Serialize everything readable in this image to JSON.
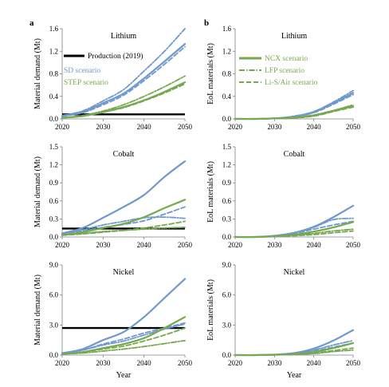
{
  "panel_letters": {
    "a": "a",
    "b": "b"
  },
  "labels": {
    "demand_ylabel": "Material demand (Mt)",
    "eol_ylabel": "EoL materials (Mt)",
    "xlabel": "Year"
  },
  "legend_a": {
    "production": "Production (2019)",
    "sd": "SD scenario",
    "step": "STEP scenario"
  },
  "legend_b": {
    "ncx": "NCX scenario",
    "lfp": "LFP scenario",
    "lis": "Li-S/Air scenario"
  },
  "colors": {
    "sd": "#6f98cd",
    "step": "#76a94f",
    "production": "#000000",
    "axis": "#7f7f7f"
  },
  "chart_data": [
    {
      "id": "a-lithium",
      "type": "line",
      "title": "Lithium",
      "xlabel": "",
      "ylabel": "Material demand (Mt)",
      "xlim": [
        2020,
        2050
      ],
      "ylim": [
        0,
        1.6
      ],
      "xticks": [
        2020,
        2030,
        2040,
        2050
      ],
      "yticks": [
        0.0,
        0.4,
        0.8,
        1.2,
        1.6
      ],
      "ytick_labels": [
        "0.0",
        "0.4",
        "0.8",
        "1.2",
        "1.6"
      ],
      "x": [
        2020,
        2025,
        2030,
        2035,
        2040,
        2045,
        2050
      ],
      "hline": {
        "name": "Production (2019)",
        "value": 0.08
      },
      "series": [
        {
          "name": "SD scenario",
          "scenario": "NCX",
          "values": [
            0.05,
            0.12,
            0.28,
            0.45,
            0.72,
            1.02,
            1.33
          ]
        },
        {
          "name": "SD scenario",
          "scenario": "LFP",
          "values": [
            0.06,
            0.14,
            0.32,
            0.52,
            0.85,
            1.2,
            1.6
          ]
        },
        {
          "name": "SD scenario",
          "scenario": "Li-S/Air",
          "values": [
            0.05,
            0.11,
            0.25,
            0.42,
            0.68,
            0.97,
            1.28
          ]
        },
        {
          "name": "STEP scenario",
          "scenario": "NCX",
          "values": [
            0.02,
            0.05,
            0.12,
            0.21,
            0.33,
            0.48,
            0.65
          ]
        },
        {
          "name": "STEP scenario",
          "scenario": "LFP",
          "values": [
            0.02,
            0.06,
            0.14,
            0.25,
            0.4,
            0.57,
            0.76
          ]
        },
        {
          "name": "STEP scenario",
          "scenario": "Li-S/Air",
          "values": [
            0.02,
            0.05,
            0.12,
            0.2,
            0.32,
            0.46,
            0.62
          ]
        }
      ]
    },
    {
      "id": "b-lithium",
      "type": "line",
      "title": "Lithium",
      "xlabel": "",
      "ylabel": "EoL materials (Mt)",
      "xlim": [
        2020,
        2050
      ],
      "ylim": [
        0,
        1.6
      ],
      "xticks": [
        2020,
        2030,
        2040,
        2050
      ],
      "yticks": [
        0.0,
        0.4,
        0.8,
        1.2,
        1.6
      ],
      "ytick_labels": [
        "0.0",
        "0.4",
        "0.8",
        "1.2",
        "1.6"
      ],
      "x": [
        2020,
        2025,
        2030,
        2035,
        2040,
        2045,
        2050
      ],
      "series": [
        {
          "name": "SD scenario",
          "scenario": "NCX",
          "values": [
            0.0,
            0.0,
            0.01,
            0.04,
            0.12,
            0.28,
            0.46
          ]
        },
        {
          "name": "SD scenario",
          "scenario": "LFP",
          "values": [
            0.0,
            0.0,
            0.01,
            0.05,
            0.13,
            0.3,
            0.5
          ]
        },
        {
          "name": "SD scenario",
          "scenario": "Li-S/Air",
          "values": [
            0.0,
            0.0,
            0.01,
            0.04,
            0.11,
            0.26,
            0.43
          ]
        },
        {
          "name": "STEP scenario",
          "scenario": "NCX",
          "values": [
            0.0,
            0.0,
            0.01,
            0.02,
            0.06,
            0.14,
            0.23
          ]
        },
        {
          "name": "STEP scenario",
          "scenario": "LFP",
          "values": [
            0.0,
            0.0,
            0.01,
            0.03,
            0.07,
            0.15,
            0.25
          ]
        },
        {
          "name": "STEP scenario",
          "scenario": "Li-S/Air",
          "values": [
            0.0,
            0.0,
            0.01,
            0.02,
            0.05,
            0.13,
            0.21
          ]
        }
      ]
    },
    {
      "id": "a-cobalt",
      "type": "line",
      "title": "Cobalt",
      "xlabel": "",
      "ylabel": "Material demand (Mt)",
      "xlim": [
        2020,
        2050
      ],
      "ylim": [
        0,
        1.5
      ],
      "xticks": [
        2020,
        2030,
        2040,
        2050
      ],
      "yticks": [
        0.0,
        0.3,
        0.6,
        0.9,
        1.2,
        1.5
      ],
      "ytick_labels": [
        "0.0",
        "0.3",
        "0.6",
        "0.9",
        "1.2",
        "1.5"
      ],
      "x": [
        2020,
        2025,
        2030,
        2035,
        2040,
        2045,
        2050
      ],
      "hline": {
        "name": "Production (2019)",
        "value": 0.14
      },
      "series": [
        {
          "name": "SD scenario",
          "scenario": "NCX",
          "values": [
            0.06,
            0.15,
            0.32,
            0.5,
            0.7,
            1.0,
            1.26
          ]
        },
        {
          "name": "SD scenario",
          "scenario": "LFP",
          "values": [
            0.05,
            0.12,
            0.2,
            0.26,
            0.32,
            0.33,
            0.31
          ]
        },
        {
          "name": "SD scenario",
          "scenario": "Li-S/Air",
          "values": [
            0.05,
            0.1,
            0.16,
            0.21,
            0.27,
            0.38,
            0.5
          ]
        },
        {
          "name": "STEP scenario",
          "scenario": "NCX",
          "values": [
            0.03,
            0.08,
            0.15,
            0.22,
            0.33,
            0.48,
            0.62
          ]
        },
        {
          "name": "STEP scenario",
          "scenario": "LFP",
          "values": [
            0.03,
            0.06,
            0.09,
            0.11,
            0.13,
            0.15,
            0.16
          ]
        },
        {
          "name": "STEP scenario",
          "scenario": "Li-S/Air",
          "values": [
            0.03,
            0.05,
            0.08,
            0.11,
            0.15,
            0.2,
            0.26
          ]
        }
      ]
    },
    {
      "id": "b-cobalt",
      "type": "line",
      "title": "Cobalt",
      "xlabel": "",
      "ylabel": "EoL materials (Mt)",
      "xlim": [
        2020,
        2050
      ],
      "ylim": [
        0,
        1.5
      ],
      "xticks": [
        2020,
        2030,
        2040,
        2050
      ],
      "yticks": [
        0.0,
        0.3,
        0.6,
        0.9,
        1.2,
        1.5
      ],
      "ytick_labels": [
        "0.0",
        "0.3",
        "0.6",
        "0.9",
        "1.2",
        "1.5"
      ],
      "x": [
        2020,
        2025,
        2030,
        2035,
        2040,
        2045,
        2050
      ],
      "series": [
        {
          "name": "SD scenario",
          "scenario": "NCX",
          "values": [
            0.0,
            0.0,
            0.02,
            0.07,
            0.17,
            0.33,
            0.52
          ]
        },
        {
          "name": "SD scenario",
          "scenario": "LFP",
          "values": [
            0.0,
            0.0,
            0.02,
            0.07,
            0.16,
            0.29,
            0.31
          ]
        },
        {
          "name": "SD scenario",
          "scenario": "Li-S/Air",
          "values": [
            0.0,
            0.0,
            0.02,
            0.06,
            0.13,
            0.2,
            0.26
          ]
        },
        {
          "name": "STEP scenario",
          "scenario": "NCX",
          "values": [
            0.0,
            0.0,
            0.01,
            0.04,
            0.09,
            0.16,
            0.25
          ]
        },
        {
          "name": "STEP scenario",
          "scenario": "LFP",
          "values": [
            0.0,
            0.0,
            0.01,
            0.03,
            0.06,
            0.1,
            0.13
          ]
        },
        {
          "name": "STEP scenario",
          "scenario": "Li-S/Air",
          "values": [
            0.0,
            0.0,
            0.01,
            0.02,
            0.04,
            0.07,
            0.1
          ]
        }
      ]
    },
    {
      "id": "a-nickel",
      "type": "line",
      "title": "Nickel",
      "xlabel": "Year",
      "ylabel": "Material demand (Mt)",
      "xlim": [
        2020,
        2050
      ],
      "ylim": [
        0,
        9.0
      ],
      "xticks": [
        2020,
        2030,
        2040,
        2050
      ],
      "yticks": [
        0.0,
        3.0,
        6.0,
        9.0
      ],
      "ytick_labels": [
        "0.0",
        "3.0",
        "6.0",
        "9.0"
      ],
      "x": [
        2020,
        2025,
        2030,
        2035,
        2040,
        2045,
        2050
      ],
      "hline": {
        "name": "Production (2019)",
        "value": 2.7
      },
      "series": [
        {
          "name": "SD scenario",
          "scenario": "NCX",
          "values": [
            0.2,
            0.6,
            1.5,
            2.3,
            3.8,
            5.7,
            7.6
          ]
        },
        {
          "name": "SD scenario",
          "scenario": "LFP",
          "values": [
            0.2,
            0.5,
            1.0,
            1.4,
            2.0,
            2.6,
            3.1
          ]
        },
        {
          "name": "SD scenario",
          "scenario": "Li-S/Air",
          "values": [
            0.2,
            0.5,
            1.1,
            1.6,
            2.2,
            2.7,
            3.2
          ]
        },
        {
          "name": "STEP scenario",
          "scenario": "NCX",
          "values": [
            0.1,
            0.3,
            0.7,
            1.1,
            1.7,
            2.7,
            3.8
          ]
        },
        {
          "name": "STEP scenario",
          "scenario": "LFP",
          "values": [
            0.1,
            0.2,
            0.4,
            0.6,
            0.85,
            1.15,
            1.45
          ]
        },
        {
          "name": "STEP scenario",
          "scenario": "Li-S/Air",
          "values": [
            0.1,
            0.3,
            0.6,
            0.9,
            1.4,
            2.0,
            2.7
          ]
        }
      ]
    },
    {
      "id": "b-nickel",
      "type": "line",
      "title": "Nickel",
      "xlabel": "Year",
      "ylabel": "EoL materials (Mt)",
      "xlim": [
        2020,
        2050
      ],
      "ylim": [
        0,
        9.0
      ],
      "xticks": [
        2020,
        2030,
        2040,
        2050
      ],
      "yticks": [
        0.0,
        3.0,
        6.0,
        9.0
      ],
      "ytick_labels": [
        "0.0",
        "3.0",
        "6.0",
        "9.0"
      ],
      "x": [
        2020,
        2025,
        2030,
        2035,
        2040,
        2045,
        2050
      ],
      "series": [
        {
          "name": "SD scenario",
          "scenario": "NCX",
          "values": [
            0.0,
            0.0,
            0.05,
            0.2,
            0.65,
            1.45,
            2.5
          ]
        },
        {
          "name": "SD scenario",
          "scenario": "LFP",
          "values": [
            0.0,
            0.0,
            0.05,
            0.15,
            0.5,
            1.0,
            1.45
          ]
        },
        {
          "name": "SD scenario",
          "scenario": "Li-S/Air",
          "values": [
            0.0,
            0.0,
            0.05,
            0.15,
            0.4,
            0.8,
            1.2
          ]
        },
        {
          "name": "STEP scenario",
          "scenario": "NCX",
          "values": [
            0.0,
            0.0,
            0.03,
            0.1,
            0.3,
            0.7,
            1.2
          ]
        },
        {
          "name": "STEP scenario",
          "scenario": "LFP",
          "values": [
            0.0,
            0.0,
            0.02,
            0.06,
            0.15,
            0.35,
            0.5
          ]
        },
        {
          "name": "STEP scenario",
          "scenario": "Li-S/Air",
          "values": [
            0.0,
            0.0,
            0.02,
            0.08,
            0.2,
            0.45,
            0.7
          ]
        }
      ]
    }
  ]
}
